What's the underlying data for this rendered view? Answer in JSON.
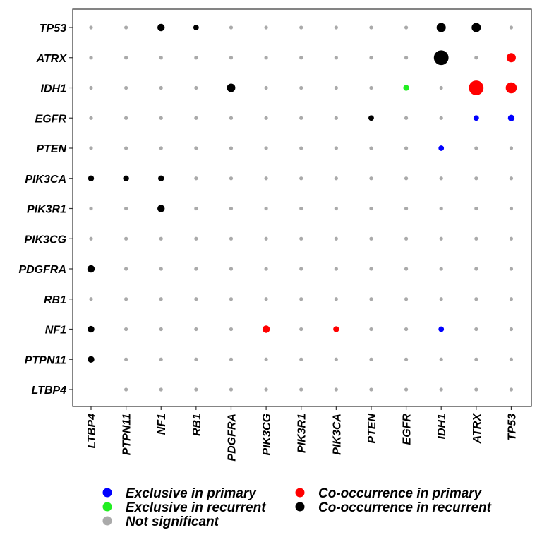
{
  "chart_data": {
    "type": "scatter",
    "x_categories": [
      "LTBP4",
      "PTPN11",
      "NF1",
      "RB1",
      "PDGFRA",
      "PIK3CG",
      "PIK3R1",
      "PIK3CA",
      "PTEN",
      "EGFR",
      "IDH1",
      "ATRX",
      "TP53"
    ],
    "y_categories": [
      "TP53",
      "ATRX",
      "IDH1",
      "EGFR",
      "PTEN",
      "PIK3CA",
      "PIK3R1",
      "PIK3CG",
      "PDGFRA",
      "RB1",
      "NF1",
      "PTPN11",
      "LTBP4"
    ],
    "categories_meta": {
      "exclusive_primary": {
        "label": "Exclusive in primary",
        "color": "#0000ff"
      },
      "exclusive_recurrent": {
        "label": "Exclusive in recurrent",
        "color": "#22ee22"
      },
      "not_significant": {
        "label": "Not significant",
        "color": "#aaaaaa"
      },
      "cooccurrence_primary": {
        "label": "Co-occurrence in primary",
        "color": "#ff0000"
      },
      "cooccurrence_recurrent": {
        "label": "Co-occurrence in recurrent",
        "color": "#000000"
      }
    },
    "points": [
      {
        "x": "NF1",
        "y": "TP53",
        "category": "cooccurrence_recurrent",
        "size": 2
      },
      {
        "x": "RB1",
        "y": "TP53",
        "category": "cooccurrence_recurrent",
        "size": 1.5
      },
      {
        "x": "IDH1",
        "y": "TP53",
        "category": "cooccurrence_recurrent",
        "size": 2.5
      },
      {
        "x": "ATRX",
        "y": "TP53",
        "category": "cooccurrence_recurrent",
        "size": 2.5
      },
      {
        "x": "IDH1",
        "y": "ATRX",
        "category": "cooccurrence_recurrent",
        "size": 4
      },
      {
        "x": "TP53",
        "y": "ATRX",
        "category": "cooccurrence_primary",
        "size": 2.5
      },
      {
        "x": "PDGFRA",
        "y": "IDH1",
        "category": "cooccurrence_recurrent",
        "size": 2.3
      },
      {
        "x": "EGFR",
        "y": "IDH1",
        "category": "exclusive_recurrent",
        "size": 1.6
      },
      {
        "x": "ATRX",
        "y": "IDH1",
        "category": "cooccurrence_primary",
        "size": 4
      },
      {
        "x": "TP53",
        "y": "IDH1",
        "category": "cooccurrence_primary",
        "size": 3
      },
      {
        "x": "PTEN",
        "y": "EGFR",
        "category": "cooccurrence_recurrent",
        "size": 1.5
      },
      {
        "x": "ATRX",
        "y": "EGFR",
        "category": "exclusive_primary",
        "size": 1.5
      },
      {
        "x": "TP53",
        "y": "EGFR",
        "category": "exclusive_primary",
        "size": 1.8
      },
      {
        "x": "IDH1",
        "y": "PTEN",
        "category": "exclusive_primary",
        "size": 1.5
      },
      {
        "x": "LTBP4",
        "y": "PIK3CA",
        "category": "cooccurrence_recurrent",
        "size": 1.6
      },
      {
        "x": "PTPN11",
        "y": "PIK3CA",
        "category": "cooccurrence_recurrent",
        "size": 1.6
      },
      {
        "x": "NF1",
        "y": "PIK3CA",
        "category": "cooccurrence_recurrent",
        "size": 1.6
      },
      {
        "x": "NF1",
        "y": "PIK3R1",
        "category": "cooccurrence_recurrent",
        "size": 2
      },
      {
        "x": "LTBP4",
        "y": "PDGFRA",
        "category": "cooccurrence_recurrent",
        "size": 2
      },
      {
        "x": "LTBP4",
        "y": "NF1",
        "category": "cooccurrence_recurrent",
        "size": 1.8
      },
      {
        "x": "PIK3CG",
        "y": "NF1",
        "category": "cooccurrence_primary",
        "size": 2
      },
      {
        "x": "PIK3CA",
        "y": "NF1",
        "category": "cooccurrence_primary",
        "size": 1.6
      },
      {
        "x": "IDH1",
        "y": "NF1",
        "category": "exclusive_primary",
        "size": 1.5
      },
      {
        "x": "LTBP4",
        "y": "PTPN11",
        "category": "cooccurrence_recurrent",
        "size": 1.8
      }
    ],
    "missing_cells": [
      {
        "x": "LTBP4",
        "y": "LTBP4"
      }
    ],
    "legend": {
      "placement": "bottom",
      "entries": [
        {
          "label": "Exclusive in primary",
          "category": "exclusive_primary"
        },
        {
          "label": "Exclusive in recurrent",
          "category": "exclusive_recurrent"
        },
        {
          "label": "Not significant",
          "category": "not_significant"
        },
        {
          "label": "Co-occurrence in primary",
          "category": "cooccurrence_primary"
        },
        {
          "label": "Co-occurrence in recurrent",
          "category": "cooccurrence_recurrent"
        }
      ]
    },
    "title": "",
    "xlabel": "",
    "ylabel": "",
    "grid": false
  }
}
